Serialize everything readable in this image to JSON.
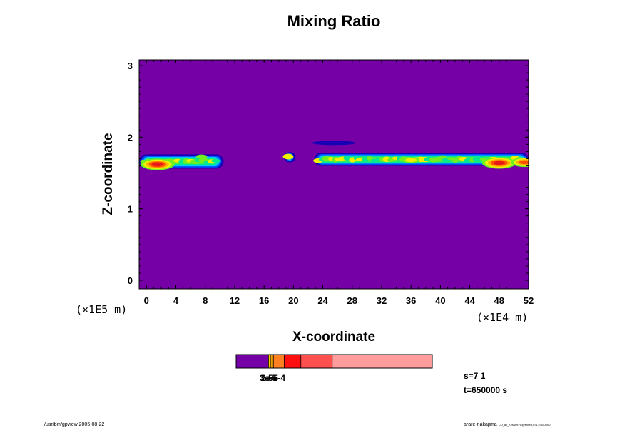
{
  "colors": {
    "background": "#7400a6",
    "palette": [
      "#7400a6",
      "#1800b4",
      "#0050ff",
      "#00c8ff",
      "#00e890",
      "#70f020",
      "#f0f000",
      "#ffb000",
      "#ff5000",
      "#e81818"
    ],
    "colorbar": [
      "#7400a6",
      "#ffd000",
      "#f0a000",
      "#ff8020",
      "#ff1010",
      "#ff5050",
      "#ff9c9c"
    ]
  },
  "chart_data": {
    "type": "heatmap",
    "title": "Mixing Ratio",
    "xlabel": "X-coordinate",
    "ylabel": "Z-coordinate",
    "x_unit": "(×1E4 m)",
    "y_unit": "(×1E5 m)",
    "xlim": [
      -1,
      52
    ],
    "ylim": [
      -0.12,
      3.08
    ],
    "xticks": [
      "0",
      "4",
      "8",
      "12",
      "16",
      "20",
      "24",
      "28",
      "32",
      "36",
      "40",
      "44",
      "48",
      "52"
    ],
    "yticks": [
      "0",
      "1",
      "2",
      "3"
    ],
    "cloud_band": {
      "segments": [
        {
          "x0": -1,
          "x1": 10.5,
          "center_z": 1.66,
          "thickness": 0.1
        },
        {
          "x0": 18.7,
          "x1": 20.3,
          "center_z": 1.72,
          "thickness": 0.07
        },
        {
          "x0": 22.8,
          "x1": 52,
          "center_z": 1.69,
          "thickness": 0.09
        }
      ],
      "cores": [
        {
          "x": 1.5,
          "z": 1.62,
          "level": 9
        },
        {
          "x": 7.5,
          "z": 1.73,
          "level": 5
        },
        {
          "x": 36,
          "z": 1.68,
          "level": 6
        },
        {
          "x": 48,
          "z": 1.64,
          "level": 9
        },
        {
          "x": 51.5,
          "z": 1.65,
          "level": 8
        }
      ]
    },
    "upper_layer": {
      "x0": 22.5,
      "x1": 28.5,
      "center_z": 1.92,
      "thickness": 0.03
    },
    "colorbar_labels": [
      "3e-5",
      "2e-5",
      "5e-4"
    ],
    "colorbar_bounds": [
      0,
      0.165,
      0.175,
      0.19,
      0.245,
      0.33,
      0.49,
      1.0
    ]
  },
  "annotations": {
    "step": "s=7 1",
    "time": "t=650000 s",
    "footer_left": "/usr/bin/gpview 2005-08-22",
    "footer_right": "arare-nakajima",
    "footer_right_small": "CO_all_Kessler.nc@MixRt,x=1,t=650000"
  }
}
